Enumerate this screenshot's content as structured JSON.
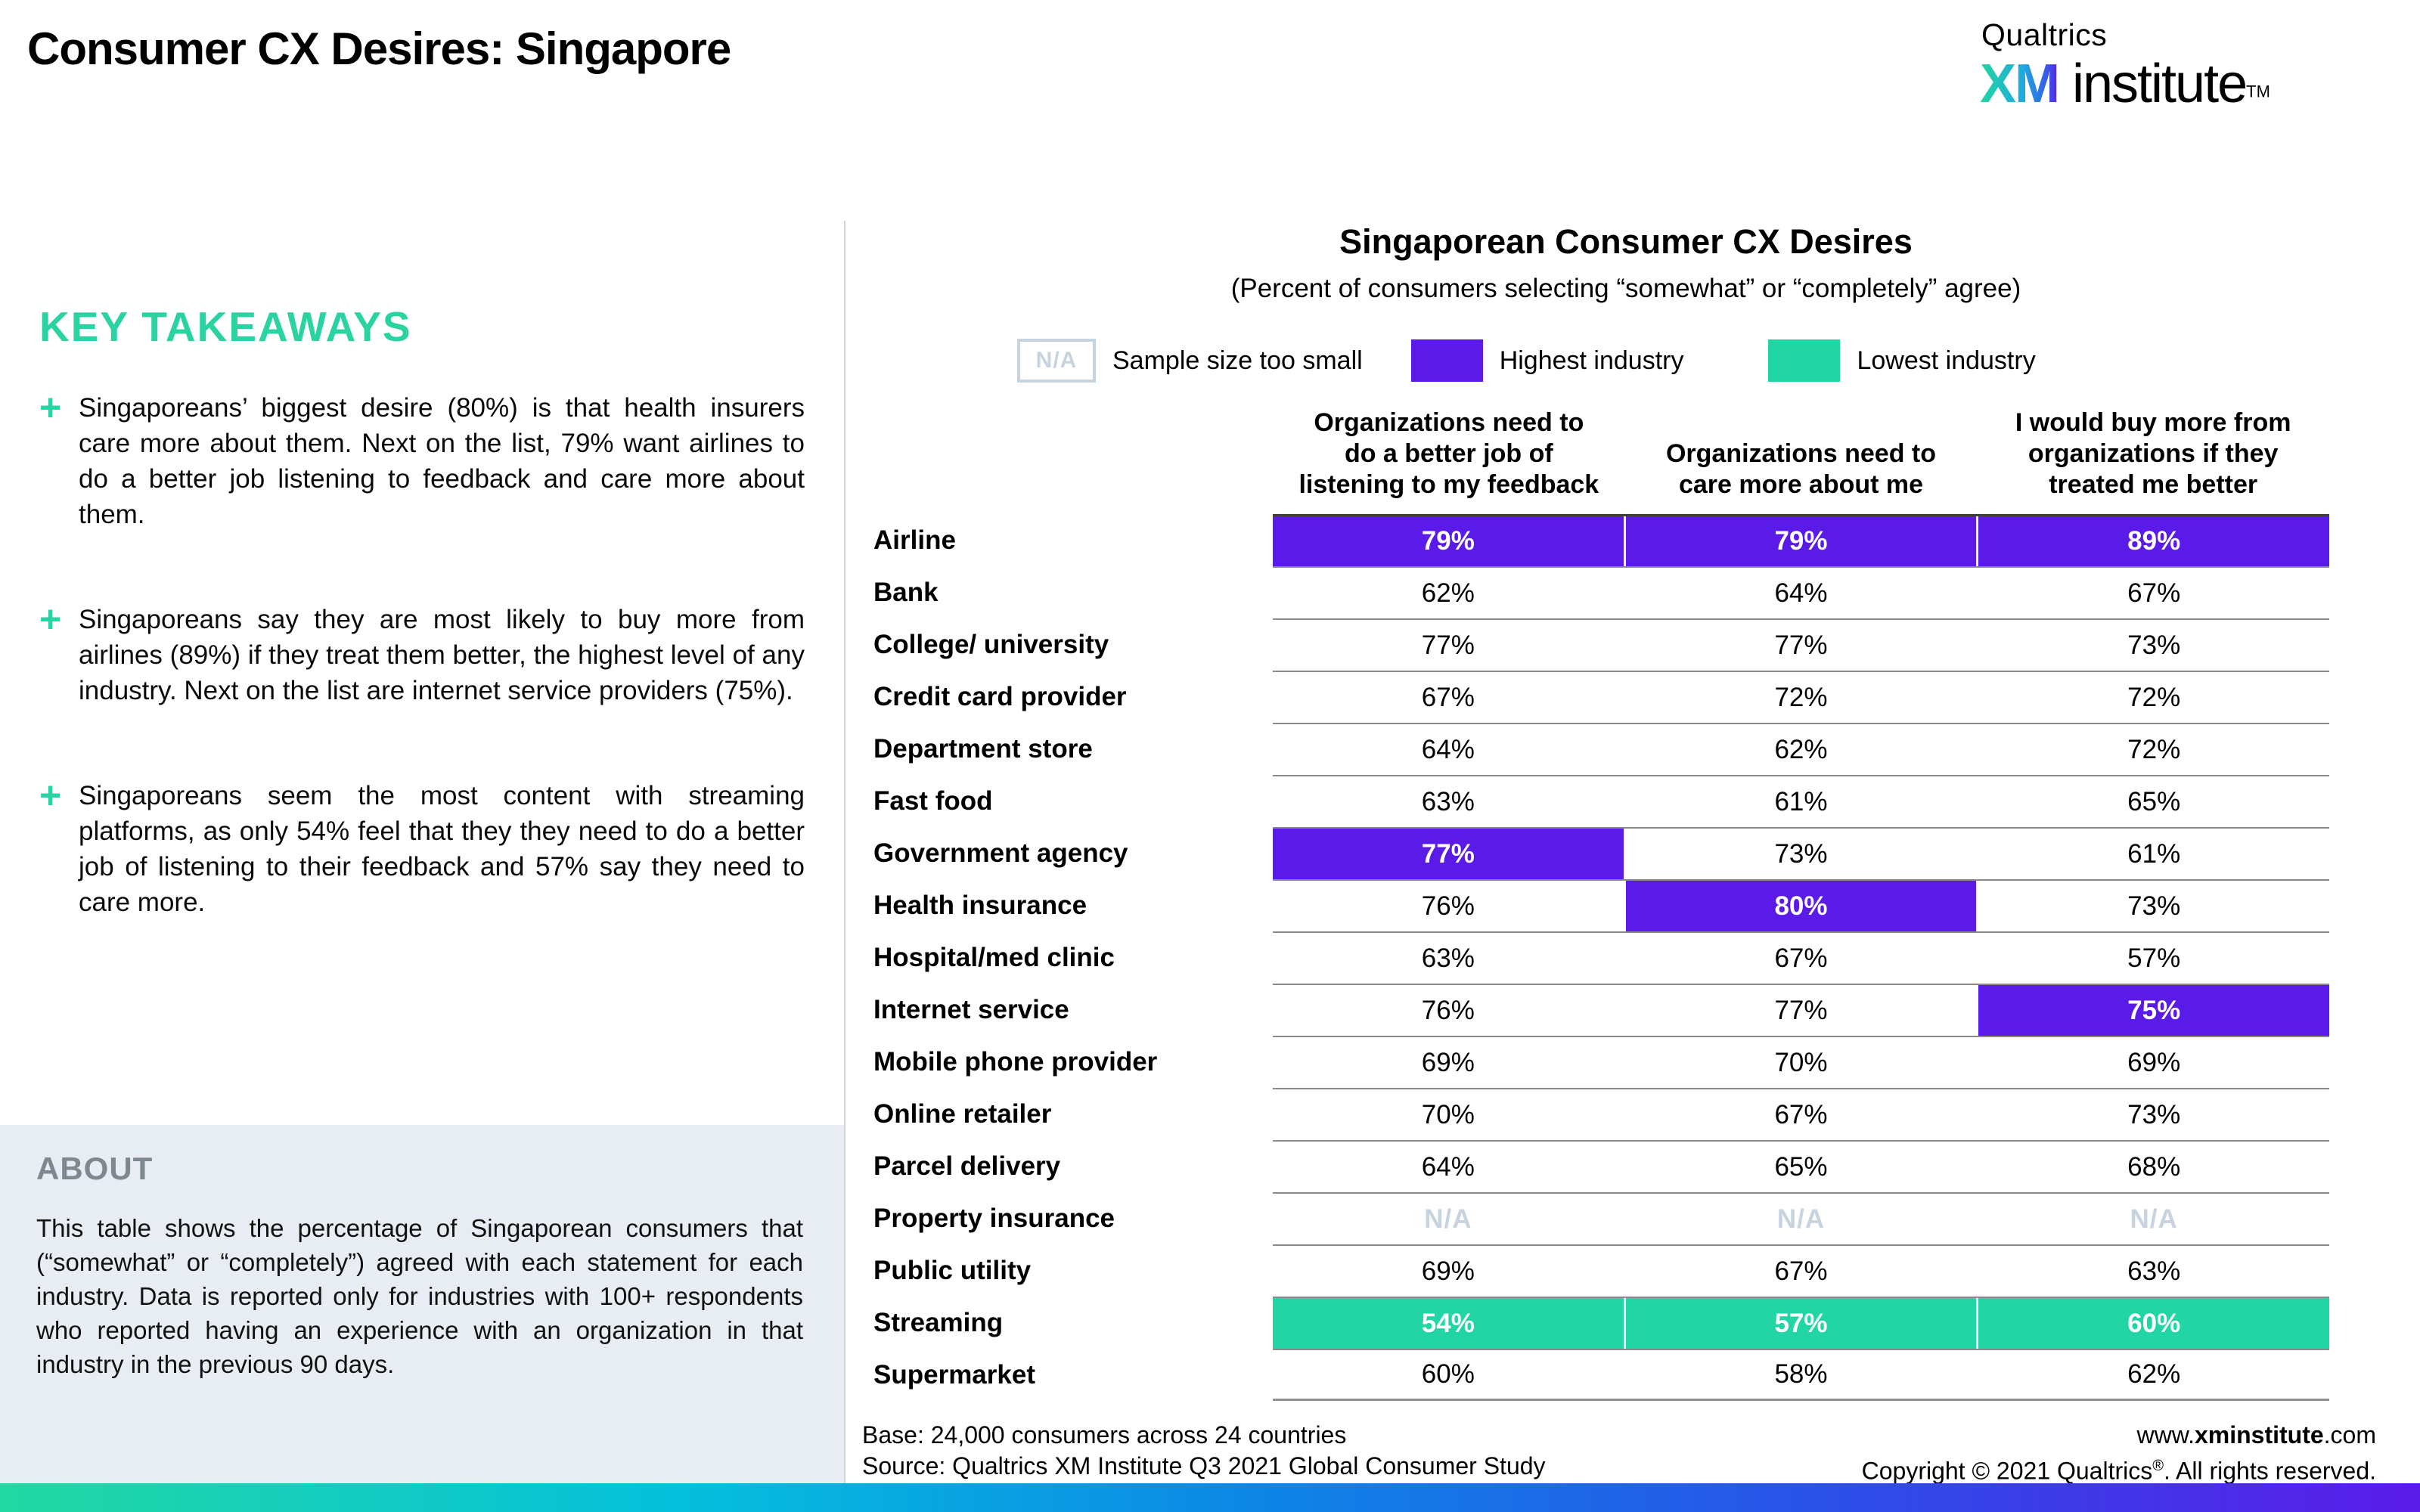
{
  "page_title": "Consumer CX Desires: Singapore",
  "logo": {
    "brand": "Qualtrics",
    "xm": "XM",
    "institute": " institute",
    "tm": "TM"
  },
  "takeaways": {
    "heading": "KEY TAKEAWAYS",
    "bullet": "+",
    "items": [
      "Singaporeans’ biggest desire (80%) is that health insurers care more about them. Next on the list, 79% want airlines to do a better job listening to feedback and care more about them.",
      "Singaporeans say they are most likely to buy more from airlines (89%) if they treat them better, the highest level of any industry. Next on the list are internet service providers (75%).",
      "Singaporeans seem the most content with streaming platforms, as only 54% feel that they they need to do a better job of listening to their feedback and 57% say they need to care more."
    ]
  },
  "about": {
    "heading": "ABOUT",
    "body": "This table shows the percentage of Singaporean consumers that (“somewhat” or “completely”) agreed with each statement for each industry. Data is reported only for industries with 100+ respondents who reported having an experience with an organization in that industry in the previous 90 days."
  },
  "chart_data": {
    "type": "table",
    "title": "Singaporean Consumer CX Desires",
    "subtitle": "(Percent of consumers selecting “somewhat” or “completely” agree)",
    "unit": "percent",
    "legend": {
      "na_box": "N/A",
      "na_label": "Sample size too small",
      "highest_label": "Highest industry",
      "lowest_label": "Lowest industry"
    },
    "columns": [
      "Organizations need to do a better job of listening to my feedback",
      "Organizations need to care more about me",
      "I would buy more from organizations if they treated me better"
    ],
    "columns_lines": [
      [
        "Organizations need to",
        "do a better job of",
        "listening to my feedback"
      ],
      [
        "Organizations need to",
        "care more about me"
      ],
      [
        "I would buy more from",
        "organizations if they",
        "treated me better"
      ]
    ],
    "rows": [
      {
        "industry": "Airline",
        "values": [
          79,
          79,
          89
        ],
        "highlight": [
          "highest",
          "highest",
          "highest"
        ]
      },
      {
        "industry": "Bank",
        "values": [
          62,
          64,
          67
        ],
        "highlight": [
          null,
          null,
          null
        ]
      },
      {
        "industry": "College/ university",
        "values": [
          77,
          77,
          73
        ],
        "highlight": [
          null,
          null,
          null
        ]
      },
      {
        "industry": "Credit card provider",
        "values": [
          67,
          72,
          72
        ],
        "highlight": [
          null,
          null,
          null
        ]
      },
      {
        "industry": "Department store",
        "values": [
          64,
          62,
          72
        ],
        "highlight": [
          null,
          null,
          null
        ]
      },
      {
        "industry": "Fast food",
        "values": [
          63,
          61,
          65
        ],
        "highlight": [
          null,
          null,
          null
        ]
      },
      {
        "industry": "Government agency",
        "values": [
          77,
          73,
          61
        ],
        "highlight": [
          "highest",
          null,
          null
        ]
      },
      {
        "industry": "Health insurance",
        "values": [
          76,
          80,
          73
        ],
        "highlight": [
          null,
          "highest",
          null
        ]
      },
      {
        "industry": "Hospital/med clinic",
        "values": [
          63,
          67,
          57
        ],
        "highlight": [
          null,
          null,
          null
        ]
      },
      {
        "industry": "Internet service",
        "values": [
          76,
          77,
          75
        ],
        "highlight": [
          null,
          null,
          "highest"
        ]
      },
      {
        "industry": "Mobile phone provider",
        "values": [
          69,
          70,
          69
        ],
        "highlight": [
          null,
          null,
          null
        ]
      },
      {
        "industry": "Online retailer",
        "values": [
          70,
          67,
          73
        ],
        "highlight": [
          null,
          null,
          null
        ]
      },
      {
        "industry": "Parcel delivery",
        "values": [
          64,
          65,
          68
        ],
        "highlight": [
          null,
          null,
          null
        ]
      },
      {
        "industry": "Property insurance",
        "values": [
          null,
          null,
          null
        ],
        "highlight": [
          "na",
          "na",
          "na"
        ]
      },
      {
        "industry": "Public utility",
        "values": [
          69,
          67,
          63
        ],
        "highlight": [
          null,
          null,
          null
        ]
      },
      {
        "industry": "Streaming",
        "values": [
          54,
          57,
          60
        ],
        "highlight": [
          "lowest",
          "lowest",
          "lowest"
        ]
      },
      {
        "industry": "Supermarket",
        "values": [
          60,
          58,
          62
        ],
        "highlight": [
          null,
          null,
          null
        ]
      }
    ]
  },
  "footer": {
    "base": "Base: 24,000 consumers across 24 countries",
    "source": "Source: Qualtrics XM Institute Q3 2021 Global Consumer Study",
    "url_pre": "www.",
    "url_bold": "xminstitute",
    "url_post": ".com",
    "copyright_pre": "Copyright © 2021 Qualtrics",
    "reg": "®",
    "copyright_post": ". All rights reserved."
  },
  "colors": {
    "highest_purple": "#5A1BE8",
    "lowest_teal": "#22D5A5",
    "na_gray_blue": "#C7D4DF",
    "accent_teal": "#2BD3A2",
    "about_panel_bg": "#E8EDF4"
  }
}
